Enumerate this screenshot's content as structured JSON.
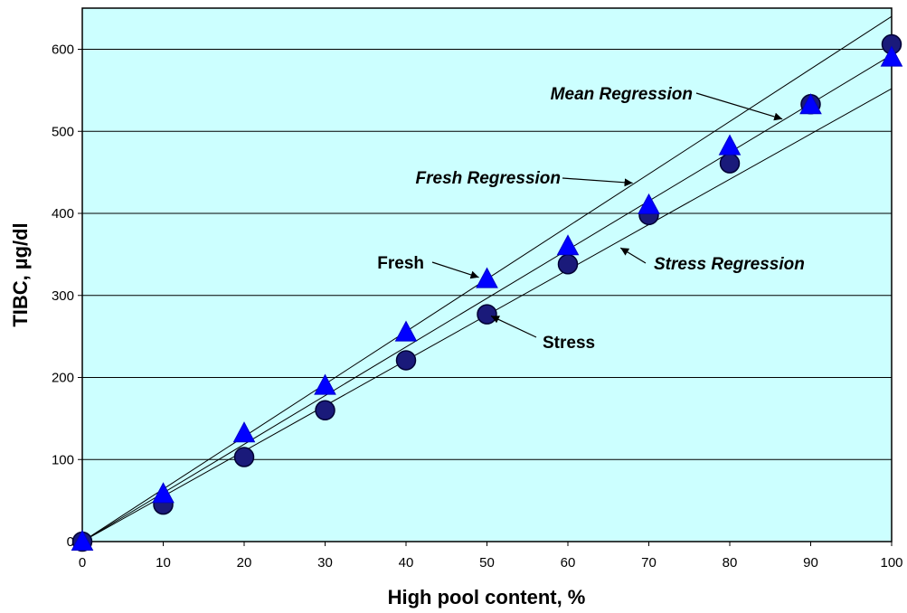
{
  "chart_data": {
    "type": "scatter",
    "title": "",
    "xlabel": "High pool content, %",
    "ylabel": "TIBC, µg/dl",
    "xlim": [
      0,
      100
    ],
    "ylim": [
      0,
      660
    ],
    "x_ticks": [
      0,
      10,
      20,
      30,
      40,
      50,
      60,
      70,
      80,
      90,
      100
    ],
    "y_ticks": [
      0,
      100,
      200,
      300,
      400,
      500,
      600
    ],
    "grid": "horizontal",
    "background": "#ccffff",
    "series": [
      {
        "name": "Stress",
        "marker": "circle",
        "color": "#1a1a7a",
        "x": [
          0,
          10,
          20,
          30,
          40,
          50,
          60,
          70,
          80,
          90,
          100
        ],
        "y": [
          0,
          45,
          103,
          160,
          221,
          277,
          338,
          398,
          461,
          533,
          606
        ]
      },
      {
        "name": "Fresh",
        "marker": "triangle",
        "color": "#0000ff",
        "x": [
          0,
          10,
          20,
          30,
          40,
          50,
          60,
          70,
          80,
          90,
          100
        ],
        "y": [
          0,
          58,
          132,
          190,
          255,
          320,
          360,
          410,
          482,
          532,
          590
        ]
      }
    ],
    "regression_lines": [
      {
        "name": "Fresh Regression",
        "y_at_0": 0,
        "y_at_100": 640
      },
      {
        "name": "Mean Regression",
        "y_at_0": 0,
        "y_at_100": 593
      },
      {
        "name": "Stress Regression",
        "y_at_0": 0,
        "y_at_100": 552
      }
    ],
    "annotations": [
      {
        "text": "Mean Regression",
        "italic": true,
        "target_x": 86.5,
        "target_y": 515
      },
      {
        "text": "Fresh Regression",
        "italic": true,
        "target_x": 68.0,
        "target_y": 437
      },
      {
        "text": "Stress Regression",
        "italic": true,
        "target_x": 66.5,
        "target_y": 358
      },
      {
        "text": "Fresh",
        "italic": false,
        "target_x": 49.0,
        "target_y": 322
      },
      {
        "text": "Stress",
        "italic": false,
        "target_x": 50.5,
        "target_y": 275
      }
    ]
  }
}
